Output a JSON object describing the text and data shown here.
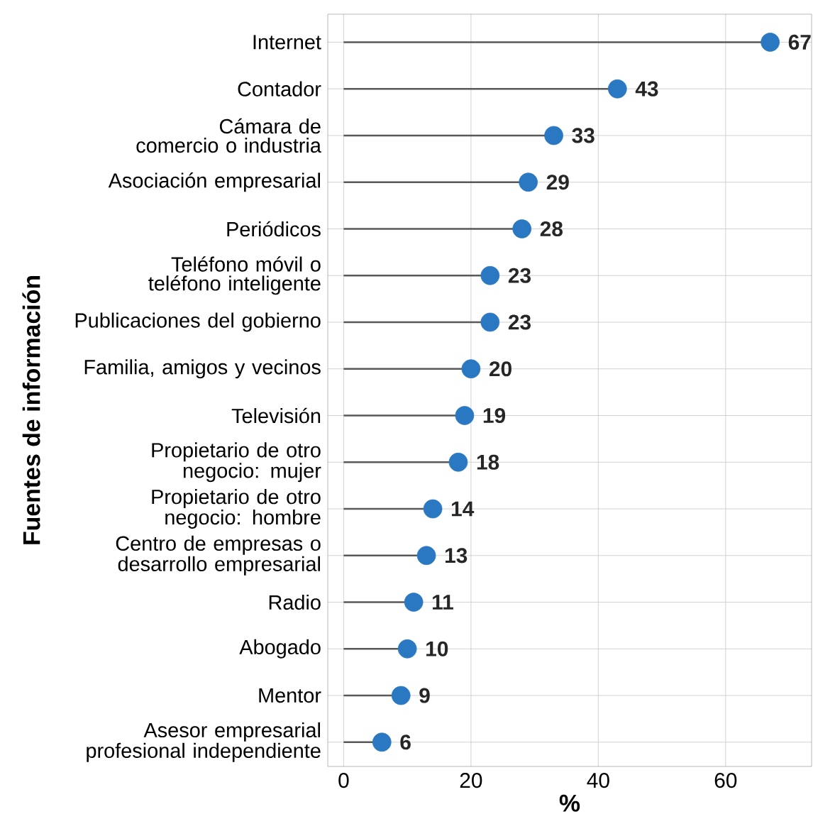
{
  "chart_data": {
    "type": "lollipop",
    "orientation": "horizontal",
    "xlabel": "%",
    "ylabel": "Fuentes de información",
    "categories": [
      "Internet",
      "Contador",
      "Cámara de comercio o industria",
      "Asociación empresarial",
      "Periódicos",
      "Teléfono móvil o teléfono inteligente",
      "Publicaciones del gobierno",
      "Familia, amigos y vecinos",
      "Televisión",
      "Propietario de otro negocio: mujer",
      "Propietario de otro negocio: hombre",
      "Centro de empresas o desarrollo empresarial",
      "Radio",
      "Abogado",
      "Mentor",
      "Asesor empresarial profesional independiente"
    ],
    "values": [
      67,
      43,
      33,
      29,
      28,
      23,
      23,
      20,
      19,
      18,
      14,
      13,
      11,
      10,
      9,
      6
    ],
    "color": "#2b78c2",
    "xlim": [
      -2.5,
      73.5
    ],
    "xticks": [
      0,
      20,
      40,
      60
    ],
    "grid": true,
    "data_labels": true
  }
}
